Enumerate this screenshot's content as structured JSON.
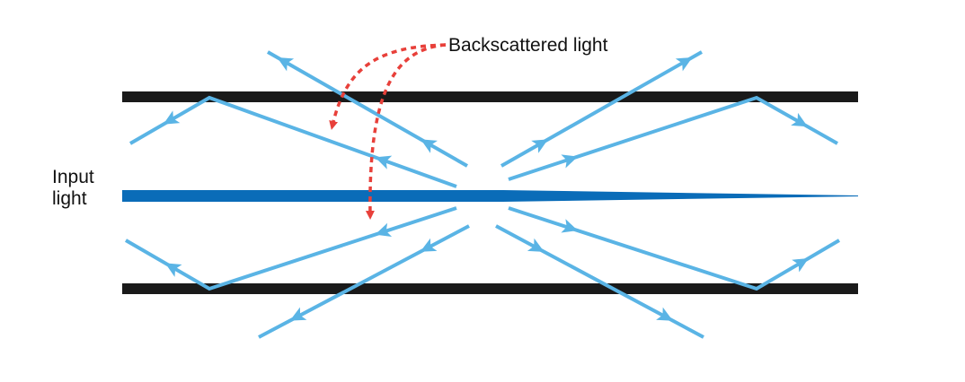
{
  "labels": {
    "input_line1": "Input",
    "input_line2": "light",
    "backscatter": "Backscattered light"
  },
  "colors": {
    "cladding": "#1a1a1a",
    "core_beam": "#0a6cb8",
    "scattered_ray": "#5ab4e5",
    "backscatter_arrow": "#e8403a"
  }
}
